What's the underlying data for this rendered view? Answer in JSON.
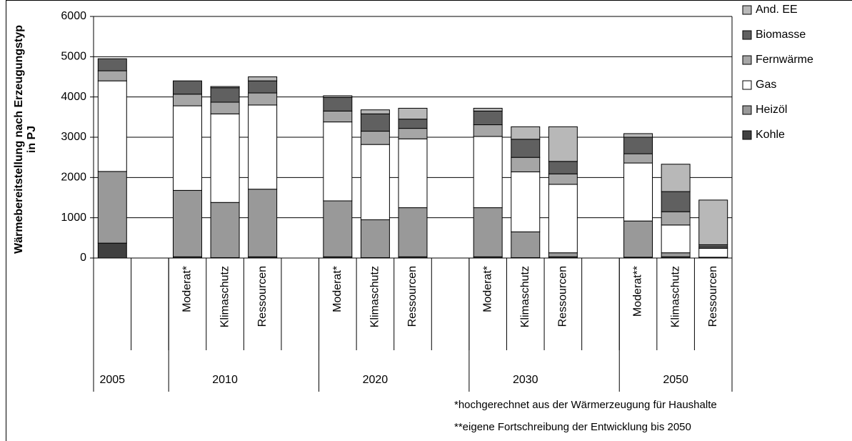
{
  "chart_data": {
    "type": "stacked_bar",
    "ylabel": [
      "Wärmebereitstellung nach Erzeugungstyp",
      "in PJ"
    ],
    "categories": [
      null,
      null,
      "Moderat*",
      "Klimaschutz",
      "Ressourcen",
      null,
      "Moderat*",
      "Klimaschutz",
      "Ressourcen",
      null,
      "Moderat*",
      "Klimaschutz",
      "Ressourcen",
      null,
      "Moderat**",
      "Klimaschutz",
      "Ressourcen"
    ],
    "groups": [
      {
        "label": "2005",
        "span": 2
      },
      {
        "label": "2010",
        "span": 4
      },
      {
        "label": "2020",
        "span": 4
      },
      {
        "label": "2030",
        "span": 4
      },
      {
        "label": "2050",
        "span": 3
      }
    ],
    "series": [
      {
        "name": "Kohle",
        "color": "#404040",
        "values": [
          370,
          null,
          30,
          10,
          30,
          null,
          30,
          10,
          30,
          null,
          30,
          10,
          30,
          null,
          20,
          30,
          10
        ]
      },
      {
        "name": "Heizöl",
        "color": "#999999",
        "values": [
          1780,
          null,
          1650,
          1370,
          1680,
          null,
          1390,
          940,
          1220,
          null,
          1220,
          640,
          100,
          null,
          900,
          100,
          10
        ]
      },
      {
        "name": "Gas",
        "color": "#ffffff",
        "values": [
          2250,
          null,
          2100,
          2200,
          2090,
          null,
          1960,
          1870,
          1710,
          null,
          1770,
          1490,
          1700,
          null,
          1440,
          690,
          220
        ]
      },
      {
        "name": "Fernwärme",
        "color": "#a6a6a6",
        "values": [
          250,
          null,
          290,
          290,
          300,
          null,
          270,
          330,
          260,
          null,
          290,
          360,
          260,
          null,
          230,
          330,
          30
        ]
      },
      {
        "name": "Biomasse",
        "color": "#606060",
        "values": [
          300,
          null,
          330,
          360,
          300,
          null,
          340,
          430,
          230,
          null,
          340,
          450,
          310,
          null,
          410,
          500,
          60
        ]
      },
      {
        "name": "And. EE",
        "color": "#b8b8b8",
        "values": [
          0,
          null,
          0,
          30,
          100,
          null,
          40,
          100,
          270,
          null,
          70,
          310,
          860,
          null,
          90,
          680,
          1110
        ]
      }
    ],
    "ylim": [
      0,
      6000
    ],
    "yticks": [
      0,
      1000,
      2000,
      3000,
      4000,
      5000,
      6000
    ],
    "grid": true,
    "legend": "right",
    "notes": [
      "*hochgerechnet aus der Wärmerzeugung für Haushalte",
      "**eigene Fortschreibung der Entwicklung bis 2050"
    ]
  }
}
